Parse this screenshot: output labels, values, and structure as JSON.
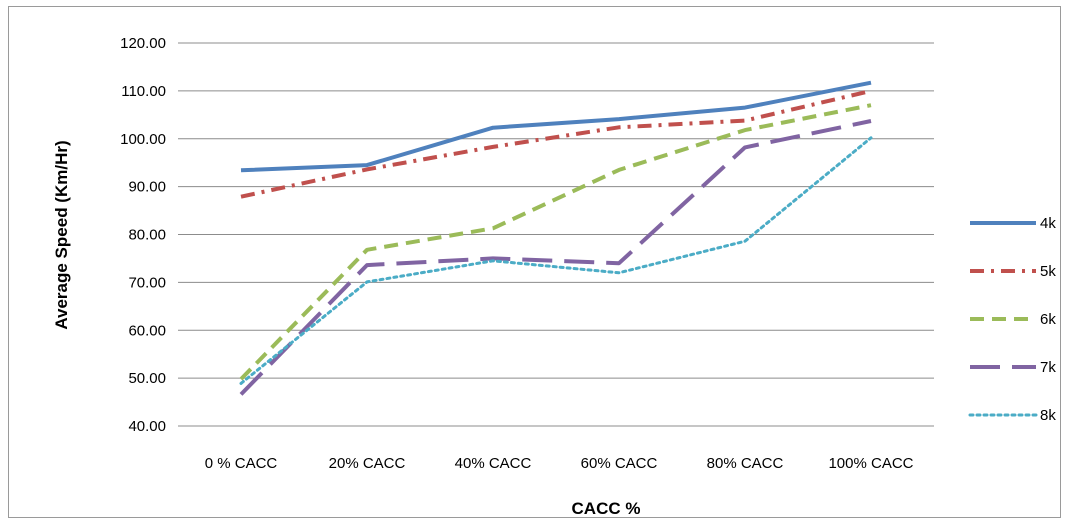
{
  "chart_data": {
    "type": "line",
    "title": "",
    "xlabel": "CACC %",
    "ylabel": "Average Speed (Km/Hr)",
    "ylim": [
      40,
      120
    ],
    "yticks": [
      "40.00",
      "50.00",
      "60.00",
      "70.00",
      "80.00",
      "90.00",
      "100.00",
      "110.00",
      "120.00"
    ],
    "categories": [
      "0 % CACC",
      "20% CACC",
      "40% CACC",
      "60% CACC",
      "80% CACC",
      "100% CACC"
    ],
    "grid": "horizontal",
    "legend_position": "right",
    "series": [
      {
        "name": "4k",
        "color": "#4F81BD",
        "dash": "solid",
        "values": [
          93.4,
          94.5,
          102.3,
          104.1,
          106.5,
          111.7
        ]
      },
      {
        "name": "5k",
        "color": "#C0504D",
        "dash": "dash-dot",
        "values": [
          87.9,
          93.6,
          98.3,
          102.4,
          103.8,
          110.0
        ]
      },
      {
        "name": "6k",
        "color": "#9BBB59",
        "dash": "dash",
        "values": [
          49.8,
          76.8,
          81.3,
          93.5,
          101.8,
          107.0
        ]
      },
      {
        "name": "7k",
        "color": "#8064A2",
        "dash": "long-dash",
        "values": [
          46.6,
          73.6,
          75.0,
          74.0,
          98.2,
          103.7
        ]
      },
      {
        "name": "8k",
        "color": "#4BACC6",
        "dash": "dot",
        "values": [
          48.9,
          70.1,
          74.5,
          72.0,
          78.6,
          100.2
        ]
      }
    ]
  }
}
